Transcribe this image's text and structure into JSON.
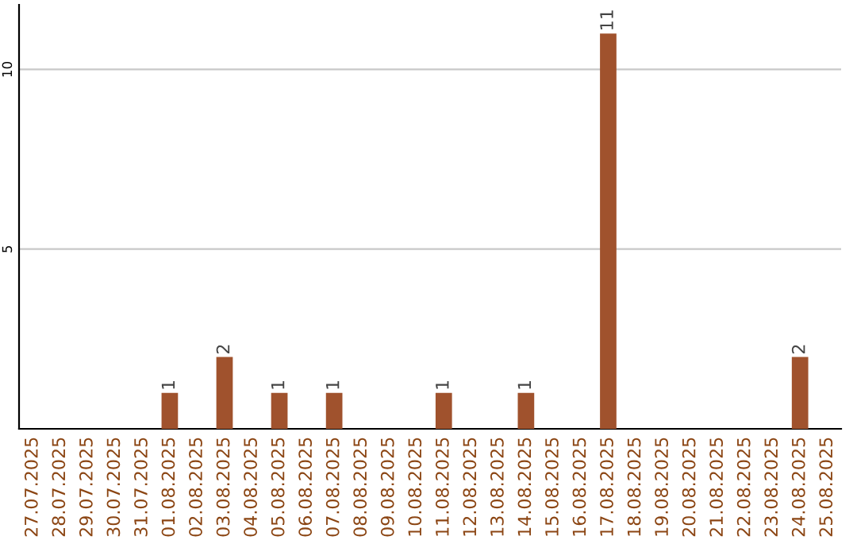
{
  "chart_data": {
    "type": "bar",
    "categories": [
      "27.07.2025",
      "28.07.2025",
      "29.07.2025",
      "30.07.2025",
      "31.07.2025",
      "01.08.2025",
      "02.08.2025",
      "03.08.2025",
      "04.08.2025",
      "05.08.2025",
      "06.08.2025",
      "07.08.2025",
      "08.08.2025",
      "09.08.2025",
      "10.08.2025",
      "11.08.2025",
      "12.08.2025",
      "13.08.2025",
      "14.08.2025",
      "15.08.2025",
      "16.08.2025",
      "17.08.2025",
      "18.08.2025",
      "19.08.2025",
      "20.08.2025",
      "21.08.2025",
      "22.08.2025",
      "23.08.2025",
      "24.08.2025",
      "25.08.2025"
    ],
    "values": [
      0,
      0,
      0,
      0,
      0,
      1,
      0,
      2,
      0,
      1,
      0,
      1,
      0,
      0,
      0,
      1,
      0,
      0,
      1,
      0,
      0,
      11,
      0,
      0,
      0,
      0,
      0,
      0,
      2,
      0
    ],
    "value_labels": [
      null,
      null,
      null,
      null,
      null,
      "1",
      null,
      "2",
      null,
      "1",
      null,
      "1",
      null,
      null,
      null,
      "1",
      null,
      null,
      "1",
      null,
      null,
      "11",
      null,
      null,
      null,
      null,
      null,
      null,
      "2",
      null
    ],
    "color": "#a0522d",
    "ylim": [
      0,
      11.8
    ],
    "yticks": [
      5,
      10
    ],
    "grid": "y"
  }
}
